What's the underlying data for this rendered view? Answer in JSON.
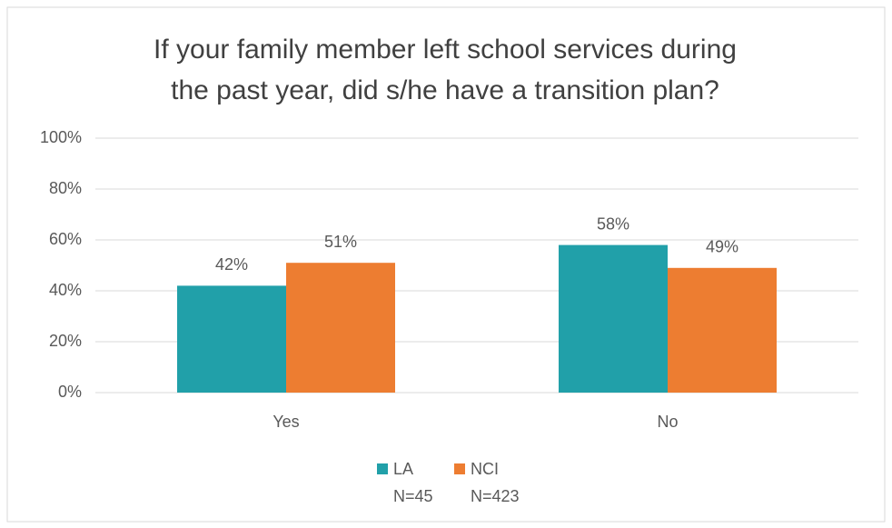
{
  "chart_data": {
    "type": "bar",
    "title": [
      "If your family member left school services during",
      "the past year, did s/he have a transition plan?"
    ],
    "categories": [
      "Yes",
      "No"
    ],
    "series": [
      {
        "name": "LA",
        "note": "N=45",
        "color": "#21a0a9",
        "values": [
          42,
          58
        ],
        "value_labels": [
          "42%",
          "58%"
        ]
      },
      {
        "name": "NCI",
        "note": "N=423",
        "color": "#ed7d31",
        "values": [
          51,
          49
        ],
        "value_labels": [
          "51%",
          "49%"
        ]
      }
    ],
    "ylim": [
      0,
      100
    ],
    "yticks": [
      {
        "value": 0,
        "label": "0%"
      },
      {
        "value": 20,
        "label": "20%"
      },
      {
        "value": 40,
        "label": "40%"
      },
      {
        "value": 60,
        "label": "60%"
      },
      {
        "value": 80,
        "label": "80%"
      },
      {
        "value": 100,
        "label": "100%"
      }
    ],
    "grid": true,
    "legend": "bottom"
  }
}
